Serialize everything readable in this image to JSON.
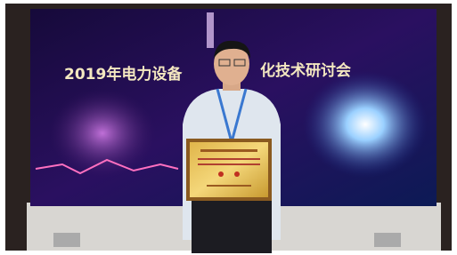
{
  "screen": {
    "title_left": "2019年电力设备",
    "title_right": "化技术研讨会"
  }
}
